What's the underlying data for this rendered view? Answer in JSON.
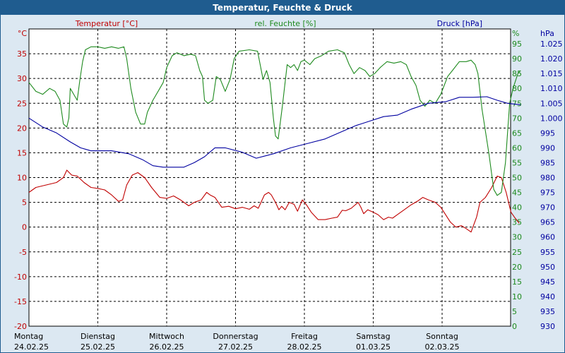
{
  "window_title": "Temperatur, Feuchte & Druck",
  "colors": {
    "frame": "#1f5c8f",
    "panel": "#dce8f2",
    "plot_bg": "#ffffff",
    "temperature": "#c00000",
    "humidity": "#1e8a1e",
    "pressure": "#0000a0"
  },
  "chart_data": {
    "type": "line",
    "title": "Temperatur, Feuchte & Druck",
    "grid": true,
    "x_axis": {
      "ticks": [
        {
          "day": "Montag",
          "date": "24.02.25"
        },
        {
          "day": "Dienstag",
          "date": "25.02.25"
        },
        {
          "day": "Mittwoch",
          "date": "26.02.25"
        },
        {
          "day": "Donnerstag",
          "date": "27.02.25"
        },
        {
          "day": "Freitag",
          "date": "28.02.25"
        },
        {
          "day": "Samstag",
          "date": "01.03.25"
        },
        {
          "day": "Sonntag",
          "date": "02.03.25"
        }
      ]
    },
    "axes": {
      "left": {
        "unit": "°C",
        "range": [
          -20,
          40
        ],
        "ticks": [
          "40",
          "35",
          "30",
          "25",
          "20",
          "15",
          "10",
          "5",
          "0",
          "-5",
          "-10",
          "-15",
          "-20"
        ]
      },
      "right1": {
        "unit": "%",
        "range": [
          0,
          100
        ],
        "ticks": [
          "95",
          "90",
          "85",
          "80",
          "75",
          "70",
          "65",
          "60",
          "55",
          "50",
          "45",
          "40",
          "35",
          "30",
          "25",
          "20",
          "15",
          "10",
          "5",
          "0"
        ]
      },
      "right2": {
        "unit": "hPa",
        "range": [
          930,
          1030
        ],
        "ticks": [
          "1.025",
          "1.020",
          "1.015",
          "1.010",
          "1.005",
          "1.000",
          "995",
          "990",
          "985",
          "980",
          "975",
          "970",
          "965",
          "960",
          "955",
          "950",
          "945",
          "940",
          "935",
          "930"
        ]
      }
    },
    "series": [
      {
        "name": "Temperatur [°C]",
        "axis": "left",
        "points": [
          [
            0,
            7
          ],
          [
            0.1,
            8
          ],
          [
            0.25,
            8.5
          ],
          [
            0.4,
            9
          ],
          [
            0.5,
            10
          ],
          [
            0.55,
            11.5
          ],
          [
            0.62,
            10.5
          ],
          [
            0.7,
            10.3
          ],
          [
            0.8,
            9
          ],
          [
            0.9,
            8
          ],
          [
            1.0,
            7.8
          ],
          [
            1.1,
            7.5
          ],
          [
            1.2,
            6.5
          ],
          [
            1.3,
            5.2
          ],
          [
            1.36,
            5.5
          ],
          [
            1.42,
            8.5
          ],
          [
            1.5,
            10.5
          ],
          [
            1.58,
            11
          ],
          [
            1.68,
            10
          ],
          [
            1.78,
            8
          ],
          [
            1.9,
            6
          ],
          [
            2.0,
            5.8
          ],
          [
            2.1,
            6.3
          ],
          [
            2.2,
            5.5
          ],
          [
            2.32,
            4.3
          ],
          [
            2.4,
            5
          ],
          [
            2.5,
            5.5
          ],
          [
            2.58,
            7
          ],
          [
            2.63,
            6.5
          ],
          [
            2.7,
            6
          ],
          [
            2.8,
            4
          ],
          [
            2.9,
            4.2
          ],
          [
            3.0,
            3.7
          ],
          [
            3.1,
            4
          ],
          [
            3.2,
            3.6
          ],
          [
            3.27,
            4.3
          ],
          [
            3.33,
            3.8
          ],
          [
            3.42,
            6.5
          ],
          [
            3.48,
            7
          ],
          [
            3.52,
            6.5
          ],
          [
            3.58,
            5
          ],
          [
            3.63,
            3.5
          ],
          [
            3.67,
            4.2
          ],
          [
            3.72,
            3.5
          ],
          [
            3.78,
            5
          ],
          [
            3.85,
            4.6
          ],
          [
            3.9,
            3.2
          ],
          [
            3.97,
            5.5
          ],
          [
            4.03,
            4.5
          ],
          [
            4.1,
            3
          ],
          [
            4.2,
            1.5
          ],
          [
            4.3,
            1.5
          ],
          [
            4.4,
            1.8
          ],
          [
            4.48,
            2
          ],
          [
            4.55,
            3.4
          ],
          [
            4.6,
            3.3
          ],
          [
            4.68,
            3.8
          ],
          [
            4.78,
            5
          ],
          [
            4.82,
            4
          ],
          [
            4.86,
            2.7
          ],
          [
            4.92,
            3.5
          ],
          [
            5.0,
            3
          ],
          [
            5.07,
            2.5
          ],
          [
            5.15,
            1.5
          ],
          [
            5.22,
            2
          ],
          [
            5.28,
            1.8
          ],
          [
            5.35,
            2.5
          ],
          [
            5.45,
            3.5
          ],
          [
            5.55,
            4.5
          ],
          [
            5.65,
            5.3
          ],
          [
            5.72,
            6
          ],
          [
            5.8,
            5.5
          ],
          [
            5.9,
            5
          ],
          [
            5.98,
            4
          ],
          [
            6.05,
            2.5
          ],
          [
            6.12,
            1
          ],
          [
            6.2,
            0
          ],
          [
            6.28,
            0.3
          ],
          [
            6.35,
            -0.3
          ],
          [
            6.42,
            -1
          ],
          [
            6.5,
            2
          ],
          [
            6.55,
            5
          ],
          [
            6.63,
            6
          ],
          [
            6.72,
            8
          ],
          [
            6.8,
            10.3
          ],
          [
            6.86,
            10
          ],
          [
            6.93,
            7
          ],
          [
            7.0,
            3
          ],
          [
            7.05,
            2
          ],
          [
            7.12,
            0.8
          ]
        ]
      },
      {
        "name": "rel. Feuchte [%]",
        "axis": "right1",
        "points": [
          [
            0,
            82
          ],
          [
            0.1,
            79
          ],
          [
            0.2,
            78
          ],
          [
            0.3,
            80
          ],
          [
            0.38,
            79
          ],
          [
            0.45,
            76
          ],
          [
            0.5,
            68
          ],
          [
            0.55,
            67
          ],
          [
            0.58,
            70
          ],
          [
            0.6,
            80
          ],
          [
            0.65,
            78
          ],
          [
            0.7,
            76
          ],
          [
            0.74,
            83
          ],
          [
            0.78,
            89
          ],
          [
            0.82,
            93
          ],
          [
            0.9,
            94
          ],
          [
            1.0,
            94
          ],
          [
            1.1,
            93.5
          ],
          [
            1.2,
            94
          ],
          [
            1.3,
            93.5
          ],
          [
            1.38,
            94
          ],
          [
            1.42,
            90
          ],
          [
            1.48,
            80
          ],
          [
            1.55,
            72
          ],
          [
            1.62,
            68
          ],
          [
            1.68,
            68
          ],
          [
            1.72,
            72
          ],
          [
            1.8,
            76
          ],
          [
            1.9,
            80
          ],
          [
            1.95,
            82
          ],
          [
            2.0,
            87
          ],
          [
            2.08,
            91
          ],
          [
            2.15,
            92
          ],
          [
            2.25,
            91
          ],
          [
            2.35,
            91.5
          ],
          [
            2.42,
            91
          ],
          [
            2.48,
            86
          ],
          [
            2.52,
            84
          ],
          [
            2.55,
            76
          ],
          [
            2.6,
            75
          ],
          [
            2.67,
            76
          ],
          [
            2.72,
            84
          ],
          [
            2.78,
            83
          ],
          [
            2.85,
            79
          ],
          [
            2.92,
            83
          ],
          [
            2.98,
            90
          ],
          [
            3.05,
            92.5
          ],
          [
            3.2,
            93
          ],
          [
            3.32,
            92.5
          ],
          [
            3.4,
            83
          ],
          [
            3.45,
            86
          ],
          [
            3.5,
            82
          ],
          [
            3.55,
            70
          ],
          [
            3.58,
            64
          ],
          [
            3.62,
            63
          ],
          [
            3.68,
            74
          ],
          [
            3.75,
            88
          ],
          [
            3.8,
            87
          ],
          [
            3.85,
            88
          ],
          [
            3.9,
            86
          ],
          [
            3.95,
            89
          ],
          [
            4.0,
            89.5
          ],
          [
            4.08,
            88
          ],
          [
            4.15,
            90
          ],
          [
            4.25,
            91
          ],
          [
            4.35,
            92.5
          ],
          [
            4.48,
            93
          ],
          [
            4.58,
            92
          ],
          [
            4.65,
            88
          ],
          [
            4.72,
            85
          ],
          [
            4.8,
            87
          ],
          [
            4.88,
            86
          ],
          [
            4.95,
            84
          ],
          [
            5.02,
            85
          ],
          [
            5.1,
            87
          ],
          [
            5.15,
            88
          ],
          [
            5.2,
            89
          ],
          [
            5.3,
            88.5
          ],
          [
            5.4,
            89
          ],
          [
            5.48,
            88
          ],
          [
            5.55,
            84
          ],
          [
            5.62,
            81
          ],
          [
            5.68,
            76
          ],
          [
            5.75,
            74
          ],
          [
            5.82,
            76
          ],
          [
            5.9,
            75
          ],
          [
            5.98,
            78
          ],
          [
            6.08,
            84
          ],
          [
            6.15,
            86
          ],
          [
            6.25,
            89
          ],
          [
            6.35,
            89
          ],
          [
            6.42,
            89.5
          ],
          [
            6.48,
            88
          ],
          [
            6.52,
            85
          ],
          [
            6.58,
            73
          ],
          [
            6.68,
            58
          ],
          [
            6.75,
            46
          ],
          [
            6.8,
            44
          ],
          [
            6.86,
            45
          ],
          [
            6.92,
            55
          ],
          [
            6.98,
            75
          ],
          [
            7.03,
            80
          ],
          [
            7.1,
            85
          ],
          [
            7.14,
            86
          ]
        ]
      },
      {
        "name": "Druck [hPa]",
        "axis": "right2",
        "points": [
          [
            0,
            1000
          ],
          [
            0.2,
            997
          ],
          [
            0.4,
            995
          ],
          [
            0.6,
            992
          ],
          [
            0.75,
            990
          ],
          [
            0.9,
            989
          ],
          [
            1.2,
            989
          ],
          [
            1.45,
            988
          ],
          [
            1.65,
            986
          ],
          [
            1.8,
            984
          ],
          [
            1.95,
            983.5
          ],
          [
            2.1,
            983.5
          ],
          [
            2.25,
            983.5
          ],
          [
            2.4,
            985
          ],
          [
            2.55,
            987
          ],
          [
            2.7,
            990
          ],
          [
            2.85,
            990
          ],
          [
            3.1,
            988.5
          ],
          [
            3.3,
            986.5
          ],
          [
            3.55,
            988
          ],
          [
            3.8,
            990
          ],
          [
            4.05,
            991.5
          ],
          [
            4.3,
            993
          ],
          [
            4.5,
            995
          ],
          [
            4.75,
            997.5
          ],
          [
            4.95,
            999
          ],
          [
            5.15,
            1000.5
          ],
          [
            5.35,
            1001
          ],
          [
            5.55,
            1003
          ],
          [
            5.8,
            1005
          ],
          [
            6.05,
            1005.5
          ],
          [
            6.25,
            1007
          ],
          [
            6.45,
            1007
          ],
          [
            6.65,
            1007.2
          ],
          [
            6.8,
            1006
          ],
          [
            6.95,
            1005
          ],
          [
            7.14,
            1004.5
          ]
        ]
      }
    ]
  }
}
